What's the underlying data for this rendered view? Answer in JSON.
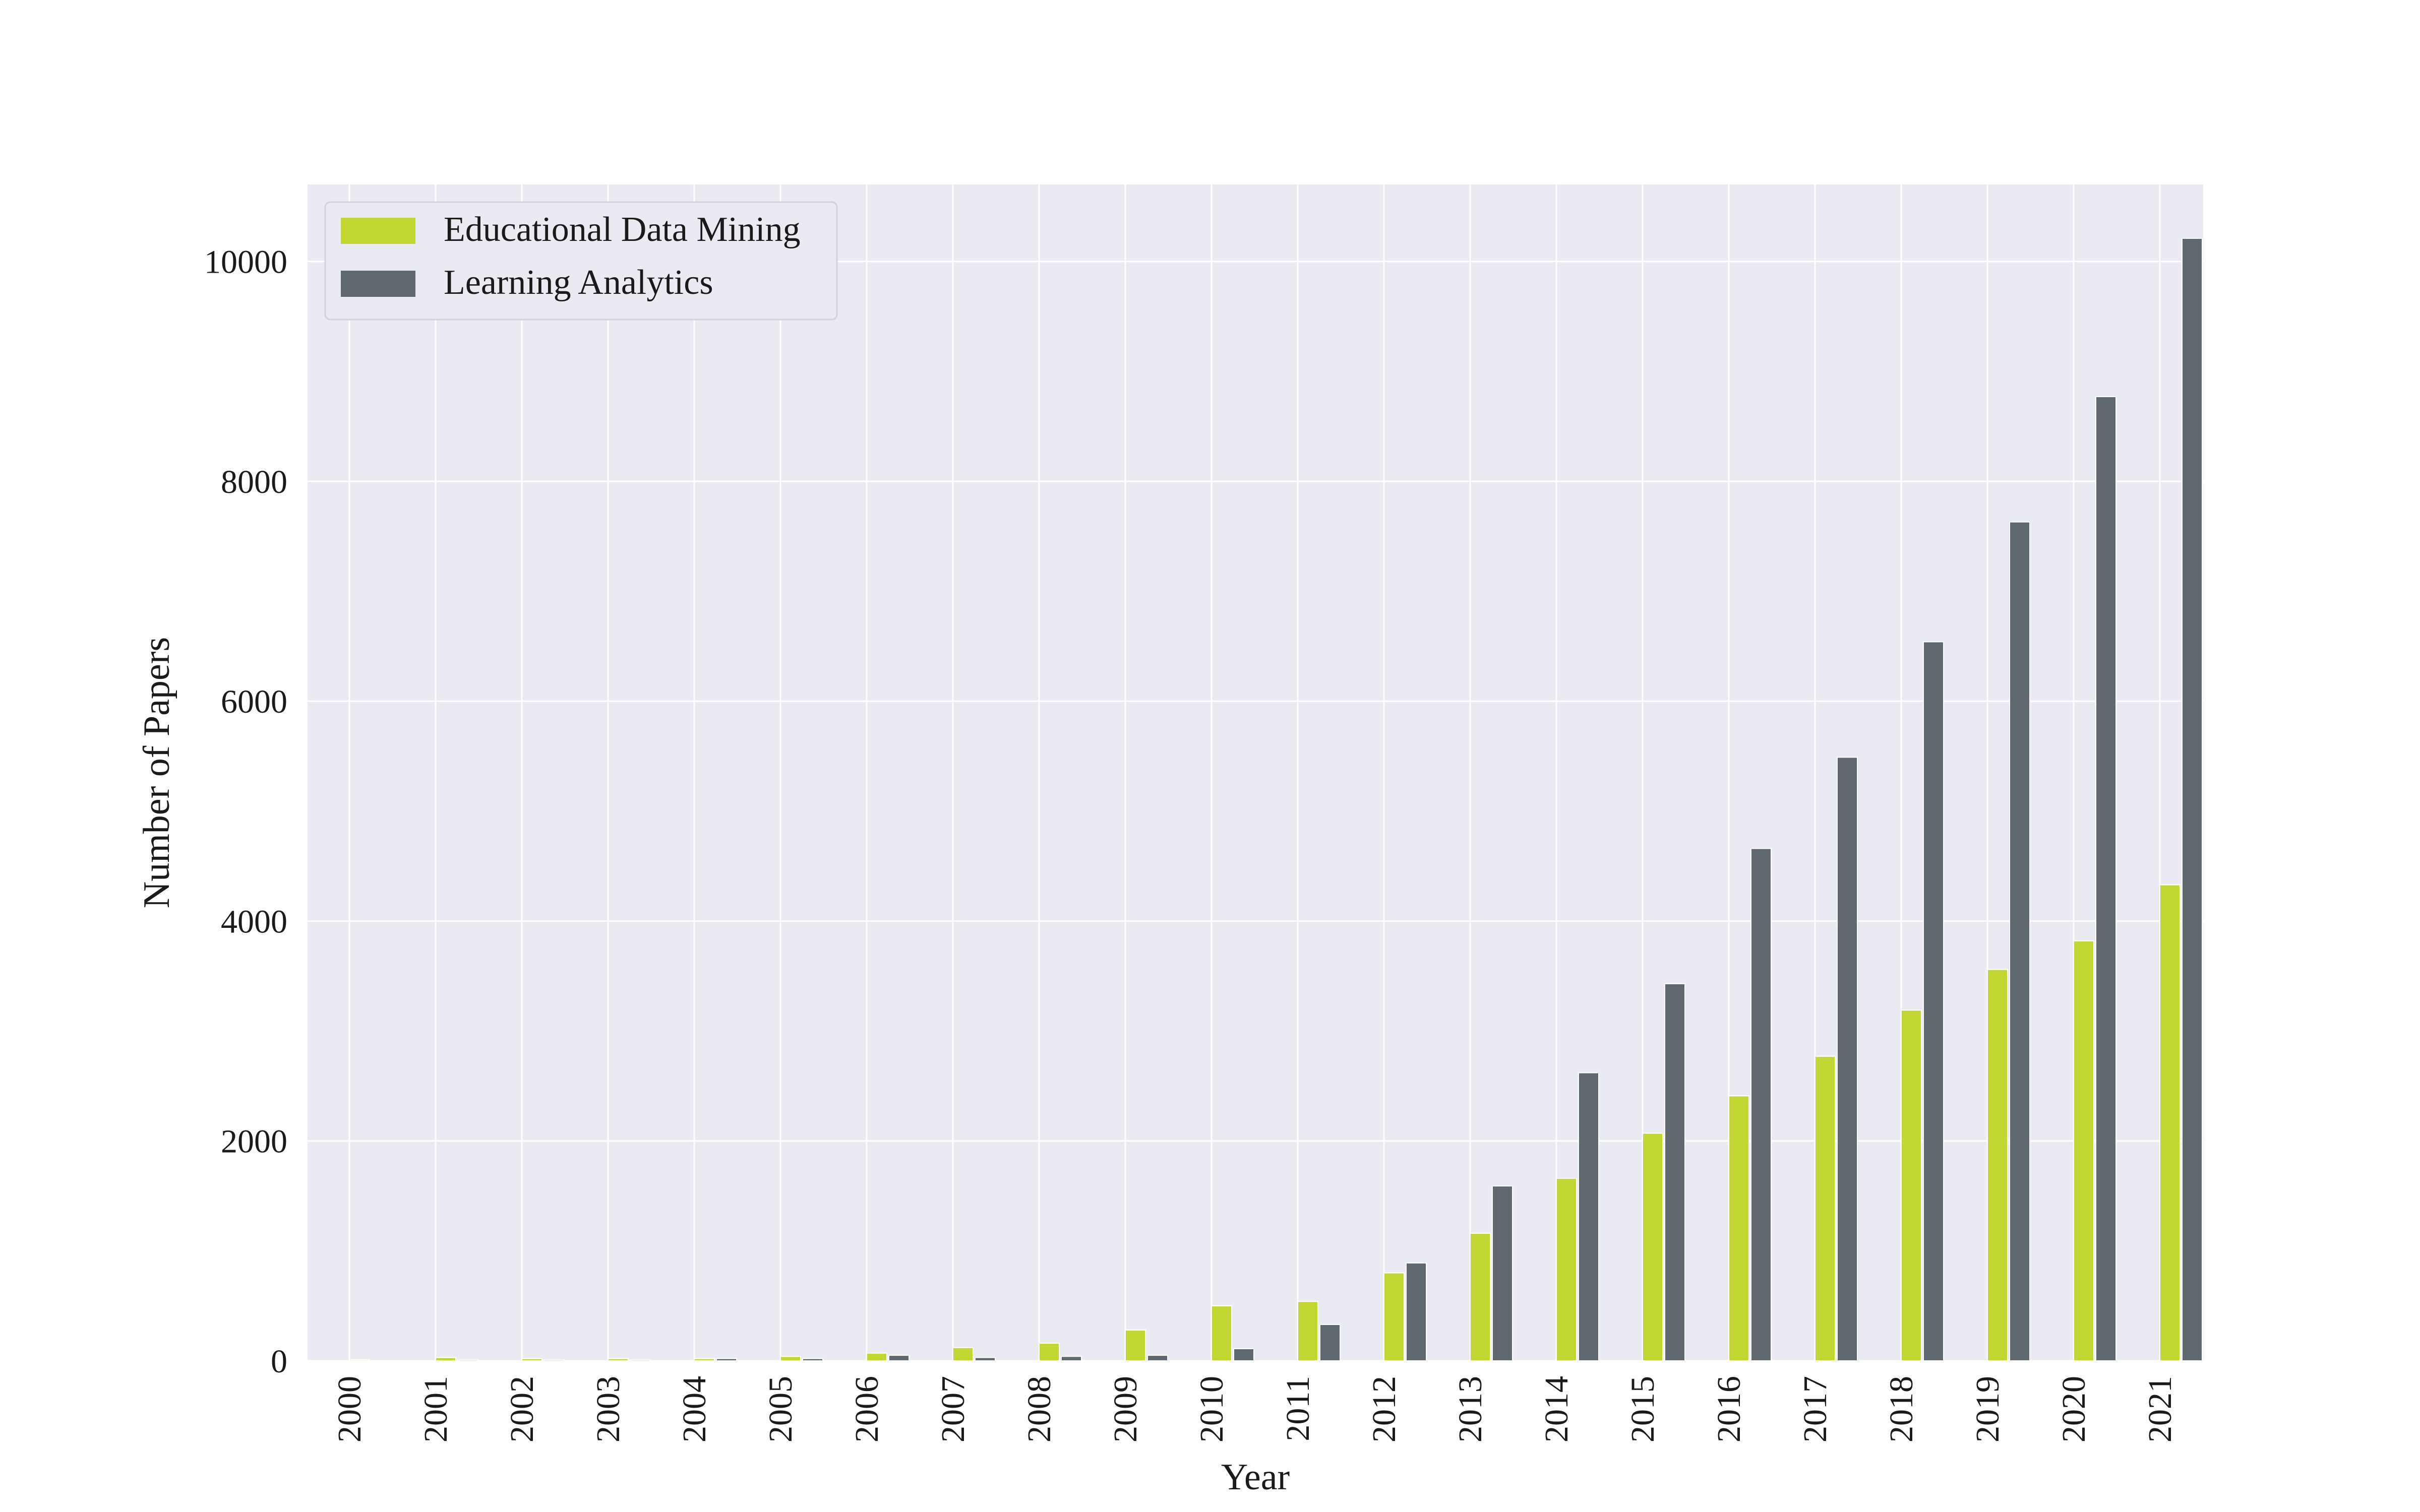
{
  "chart_data": {
    "type": "bar",
    "title": "",
    "xlabel": "Year",
    "ylabel": "Number of Papers",
    "categories": [
      "2000",
      "2001",
      "2002",
      "2003",
      "2004",
      "2005",
      "2006",
      "2007",
      "2008",
      "2009",
      "2010",
      "2011",
      "2012",
      "2013",
      "2014",
      "2015",
      "2016",
      "2017",
      "2018",
      "2019",
      "2020",
      "2021"
    ],
    "series": [
      {
        "name": "Educational Data Mining",
        "color": "#c2d733",
        "values": [
          10,
          30,
          20,
          20,
          20,
          40,
          70,
          120,
          160,
          280,
          500,
          540,
          800,
          1160,
          1660,
          2070,
          2410,
          2770,
          3190,
          3560,
          3820,
          4330
        ]
      },
      {
        "name": "Learning Analytics",
        "color": "#5f686f",
        "values": [
          0,
          10,
          10,
          10,
          20,
          20,
          50,
          30,
          40,
          50,
          110,
          330,
          890,
          1590,
          2620,
          3430,
          4660,
          5490,
          6540,
          7630,
          8770,
          10210
        ]
      }
    ],
    "yticks": [
      0,
      2000,
      4000,
      6000,
      8000,
      10000
    ],
    "ylim": [
      0,
      10700
    ],
    "grid": true,
    "legend_position": "top-left",
    "plot_background": "#eaeaf2",
    "grid_color": "#ffffff"
  }
}
